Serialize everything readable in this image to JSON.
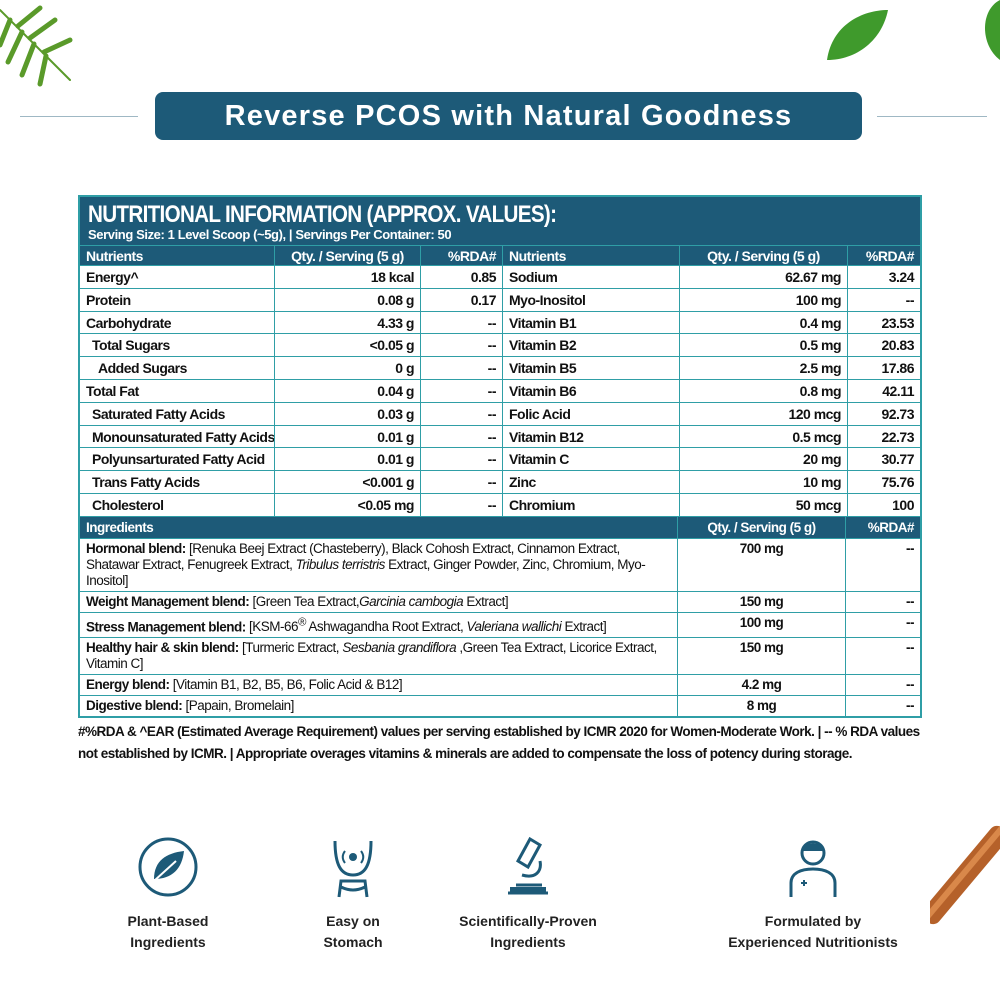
{
  "banner": {
    "title": "Reverse PCOS with Natural Goodness"
  },
  "table": {
    "title": "NUTRITIONAL INFORMATION (APPROX. VALUES):",
    "subtitle": "Serving Size: 1 Level Scoop (~5g), | Servings Per Container: 50",
    "headers": [
      "Nutrients",
      "Qty. / Serving (5 g)",
      "%RDA#",
      "Nutrients",
      "Qty. / Serving (5 g)",
      "%RDA#"
    ],
    "rows": [
      [
        "Energy^",
        "18 kcal",
        "0.85",
        "Sodium",
        "62.67 mg",
        "3.24"
      ],
      [
        "Protein",
        "0.08 g",
        "0.17",
        "Myo-Inositol",
        "100 mg",
        "--"
      ],
      [
        "Carbohydrate",
        "4.33 g",
        "--",
        "Vitamin B1",
        "0.4 mg",
        "23.53"
      ],
      [
        " Total Sugars",
        "<0.05 g",
        "--",
        "Vitamin B2",
        "0.5 mg",
        "20.83"
      ],
      [
        "  Added Sugars",
        "0 g",
        "--",
        "Vitamin B5",
        "2.5 mg",
        "17.86"
      ],
      [
        "Total Fat",
        "0.04 g",
        "--",
        "Vitamin B6",
        "0.8 mg",
        "42.11"
      ],
      [
        " Saturated Fatty Acids",
        "0.03 g",
        "--",
        "Folic Acid",
        "120 mcg",
        "92.73"
      ],
      [
        " Monounsaturated Fatty Acids",
        "0.01 g",
        "--",
        "Vitamin B12",
        "0.5 mcg",
        "22.73"
      ],
      [
        " Polyunsarturated Fatty Acid",
        "0.01 g",
        "--",
        "Vitamin C",
        "20 mg",
        "30.77"
      ],
      [
        " Trans Fatty Acids",
        "<0.001 g",
        "--",
        "Zinc",
        "10 mg",
        "75.76"
      ],
      [
        " Cholesterol",
        "<0.05 mg",
        "--",
        "Chromium",
        "50 mcg",
        "100"
      ]
    ],
    "ingredients_header": [
      "Ingredients",
      "Qty. / Serving (5 g)",
      "%RDA#"
    ],
    "ingredients": [
      {
        "label": "Hormonal blend:",
        "html": " [Renuka Beej Extract (Chasteberry), Black Cohosh Extract, Cinnamon Extract, Shatawar Extract, Fenugreek Extract, <i>Tribulus terristris</i> Extract, Ginger Powder, Zinc, Chromium, Myo-Inositol]",
        "qty": "700 mg",
        "rda": "--"
      },
      {
        "label": "Weight Management blend:",
        "html": " [Green Tea Extract,<i>Garcinia cambogia</i> Extract]",
        "qty": "150 mg",
        "rda": "--"
      },
      {
        "label": "Stress Management blend:",
        "html": " [KSM-66<sup>®</sup> Ashwagandha Root Extract, <i>Valeriana wallichi</i> Extract]",
        "qty": "100 mg",
        "rda": "--"
      },
      {
        "label": "Healthy hair & skin blend:",
        "html": " [Turmeric Extract, <i>Sesbania grandiflora</i> ,Green Tea Extract, Licorice Extract, Vitamin C]",
        "qty": "150 mg",
        "rda": "--"
      },
      {
        "label": "Energy blend:",
        "html": " [Vitamin B1, B2, B5, B6, Folic Acid & B12]",
        "qty": "4.2 mg",
        "rda": "--"
      },
      {
        "label": "Digestive blend:",
        "html": " [Papain, Bromelain]",
        "qty": "8 mg",
        "rda": "--"
      }
    ]
  },
  "footnote": "#%RDA & ^EAR (Estimated Average Requirement) values per serving established by ICMR 2020 for Women-Moderate Work. | -- % RDA values not established by ICMR. | Appropriate overages vitamins & minerals are added to compensate the loss of potency during storage.",
  "features": [
    {
      "icon": "plant-leaf-icon",
      "l1": "Plant-Based",
      "l2": "Ingredients"
    },
    {
      "icon": "stomach-icon",
      "l1": "Easy on",
      "l2": "Stomach"
    },
    {
      "icon": "microscope-icon",
      "l1": "Scientifically-Proven",
      "l2": "Ingredients"
    },
    {
      "icon": "nutritionist-icon",
      "l1": "Formulated by",
      "l2": "Experienced Nutritionists"
    }
  ],
  "colors": {
    "primary": "#1d5a78",
    "border": "#2f9ea6",
    "leaf": "#4a9a2a"
  }
}
